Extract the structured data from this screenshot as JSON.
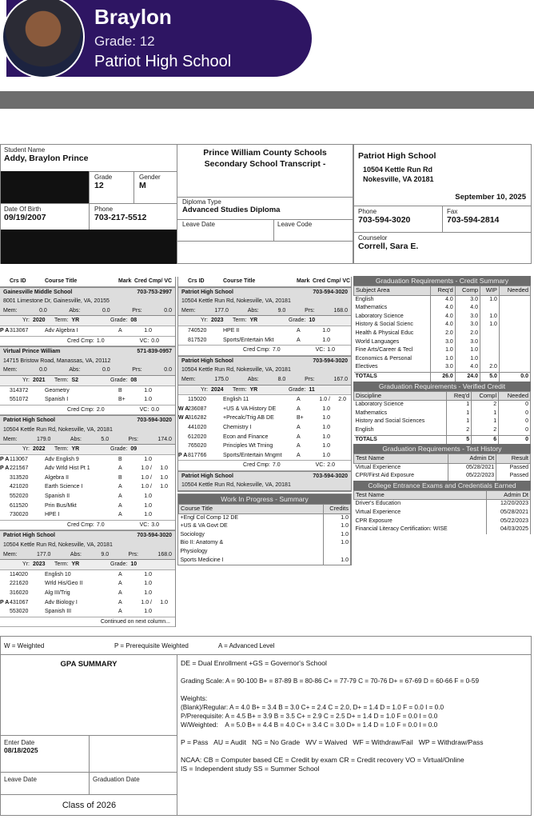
{
  "profile": {
    "name": "Braylon",
    "grade": "Grade: 12",
    "school": "Patriot High School"
  },
  "header": {
    "student_name_label": "Student Name",
    "student_name": "Addy, Braylon Prince",
    "grade_label": "Grade",
    "grade": "12",
    "gender_label": "Gender",
    "gender": "M",
    "dob_label": "Date Of Birth",
    "dob": "09/19/2007",
    "phone_label": "Phone",
    "phone": "703-217-5512",
    "district": "Prince William County Schools",
    "doc_title": "Secondary School Transcript -",
    "diploma_label": "Diploma Type",
    "diploma": "Advanced Studies Diploma",
    "leave_date_label": "Leave Date",
    "leave_code_label": "Leave Code",
    "school_name": "Patriot High School",
    "school_addr1": "10504 Kettle Run Rd",
    "school_addr2": "Nokesville, VA 20181",
    "date": "September 10, 2025",
    "school_phone_label": "Phone",
    "school_phone": "703-594-3020",
    "fax_label": "Fax",
    "fax": "703-594-2814",
    "counselor_label": "Counselor",
    "counselor": "Correll, Sara E."
  },
  "course_headers": {
    "id": "Crs ID",
    "title": "Course Title",
    "mark": "Mark",
    "cred": "Cred Cmp/ VC"
  },
  "labels": {
    "mem": "Mem:",
    "abs": "Abs:",
    "prs": "Prs:",
    "yr": "Yr:",
    "term": "Term:",
    "grade": "Grade:",
    "cred_cmp": "Cred Cmp:",
    "vc": "VC:"
  },
  "columns": [
    [
      {
        "school": {
          "name": "Gainesville Middle School",
          "phone": "703-753-2997",
          "address": "8001 Limestone Dr, Gainesville, VA, 20155",
          "mem": "0.0",
          "abs": "0.0",
          "prs": "0.0"
        }
      },
      {
        "term": {
          "yr": "2020",
          "term": "YR",
          "grade": "08",
          "courses": [
            {
              "flags": "P A",
              "id": "313067",
              "title": "Adv Algebra I",
              "mark": "A",
              "cred": "1.0",
              "vc": ""
            }
          ],
          "cred_cmp": "1.0",
          "vc": "0.0"
        }
      },
      {
        "school": {
          "name": "Virtual Prince William",
          "phone": "571-839-0957",
          "address": "14715 Bristow Road, Manassas, VA, 20112",
          "mem": "0.0",
          "abs": "0.0",
          "prs": "0.0"
        }
      },
      {
        "term": {
          "yr": "2021",
          "term": "S2",
          "grade": "08",
          "courses": [
            {
              "flags": "",
              "id": "314372",
              "title": "Geometry",
              "mark": "B",
              "cred": "1.0",
              "vc": ""
            },
            {
              "flags": "",
              "id": "551072",
              "title": "Spanish I",
              "mark": "B+",
              "cred": "1.0",
              "vc": ""
            }
          ],
          "cred_cmp": "2.0",
          "vc": "0.0"
        }
      },
      {
        "school": {
          "name": "Patriot High School",
          "phone": "703-594-3020",
          "address": "10504 Kettle Run Rd, Nokesville, VA, 20181",
          "mem": "179.0",
          "abs": "5.0",
          "prs": "174.0"
        }
      },
      {
        "term": {
          "yr": "2022",
          "term": "YR",
          "grade": "09",
          "courses": [
            {
              "flags": "P A",
              "id": "113067",
              "title": "Adv English 9",
              "mark": "B",
              "cred": "1.0",
              "vc": ""
            },
            {
              "flags": "P A",
              "id": "221567",
              "title": "Adv Wrld Hist Pt 1",
              "mark": "A",
              "cred": "1.0 /",
              "vc": "1.0"
            },
            {
              "flags": "",
              "id": "313520",
              "title": "Algebra II",
              "mark": "B",
              "cred": "1.0 /",
              "vc": "1.0"
            },
            {
              "flags": "",
              "id": "421020",
              "title": "Earth Science I",
              "mark": "A",
              "cred": "1.0 /",
              "vc": "1.0"
            },
            {
              "flags": "",
              "id": "552020",
              "title": "Spanish II",
              "mark": "A",
              "cred": "1.0",
              "vc": ""
            },
            {
              "flags": "",
              "id": "611520",
              "title": "Prin Bus/Mkt",
              "mark": "A",
              "cred": "1.0",
              "vc": ""
            },
            {
              "flags": "",
              "id": "730020",
              "title": "HPE I",
              "mark": "A",
              "cred": "1.0",
              "vc": ""
            }
          ],
          "cred_cmp": "7.0",
          "vc": "3.0"
        }
      },
      {
        "school": {
          "name": "Patriot High School",
          "phone": "703-594-3020",
          "address": "10504 Kettle Run Rd, Nokesville, VA, 20181",
          "mem": "177.0",
          "abs": "9.0",
          "prs": "168.0"
        }
      },
      {
        "term": {
          "yr": "2023",
          "term": "YR",
          "grade": "10",
          "courses": [
            {
              "flags": "",
              "id": "114020",
              "title": "English 10",
              "mark": "A",
              "cred": "1.0",
              "vc": ""
            },
            {
              "flags": "",
              "id": "221620",
              "title": "Wrld His/Geo II",
              "mark": "A",
              "cred": "1.0",
              "vc": ""
            },
            {
              "flags": "",
              "id": "316020",
              "title": "Alg III/Trig",
              "mark": "A",
              "cred": "1.0",
              "vc": ""
            },
            {
              "flags": "P A",
              "id": "431067",
              "title": "Adv Biology I",
              "mark": "A",
              "cred": "1.0 /",
              "vc": "1.0"
            },
            {
              "flags": "",
              "id": "553020",
              "title": "Spanish III",
              "mark": "A",
              "cred": "1.0",
              "vc": ""
            }
          ]
        }
      },
      {
        "note": "Continued on next column..."
      }
    ],
    [
      {
        "school": {
          "name": "Patriot High School",
          "phone": "703-594-3020",
          "address": "10504 Kettle Run Rd, Nokesville, VA, 20181",
          "mem": "177.0",
          "abs": "9.0",
          "prs": "168.0"
        }
      },
      {
        "term": {
          "yr": "2023",
          "term": "YR",
          "grade": "10",
          "courses": [
            {
              "flags": "",
              "id": "740520",
              "title": "HPE II",
              "mark": "A",
              "cred": "1.0",
              "vc": ""
            },
            {
              "flags": "",
              "id": "817520",
              "title": "Sports/Entertain Mkt",
              "mark": "A",
              "cred": "1.0",
              "vc": ""
            }
          ],
          "cred_cmp": "7.0",
          "vc": "1.0"
        }
      },
      {
        "school": {
          "name": "Patriot High School",
          "phone": "703-594-3020",
          "address": "10504 Kettle Run Rd, Nokesville, VA, 20181",
          "mem": "175.0",
          "abs": "8.0",
          "prs": "167.0"
        }
      },
      {
        "term": {
          "yr": "2024",
          "term": "YR",
          "grade": "11",
          "courses": [
            {
              "flags": "",
              "id": "115020",
              "title": "English 11",
              "mark": "A",
              "cred": "1.0 /",
              "vc": "2.0"
            },
            {
              "flags": "W A",
              "id": "236087",
              "title": "+US & VA History DE",
              "mark": "A",
              "cred": "1.0",
              "vc": ""
            },
            {
              "flags": "W A",
              "id": "316282",
              "title": "+Precalc/Trig AB DE",
              "mark": "B+",
              "cred": "1.0",
              "vc": ""
            },
            {
              "flags": "",
              "id": "441020",
              "title": "Chemistry I",
              "mark": "A",
              "cred": "1.0",
              "vc": ""
            },
            {
              "flags": "",
              "id": "612020",
              "title": "Econ and Finance",
              "mark": "A",
              "cred": "1.0",
              "vc": ""
            },
            {
              "flags": "",
              "id": "765020",
              "title": "Principles Wt Trning",
              "mark": "A",
              "cred": "1.0",
              "vc": ""
            },
            {
              "flags": "P A",
              "id": "817766",
              "title": "Sports/Entertain Mngmt",
              "mark": "A",
              "cred": "1.0",
              "vc": ""
            }
          ],
          "cred_cmp": "7.0",
          "vc": "2.0"
        }
      },
      {
        "school": {
          "name": "Patriot High School",
          "phone": "703-594-3020",
          "address": "10504 Kettle Run Rd, Nokesville, VA, 20181"
        }
      }
    ]
  ],
  "wip": {
    "title": "Work In Progress - Summary",
    "h_title": "Course Title",
    "h_credits": "Credits",
    "rows": [
      {
        "title": "+Engl Col Comp 12 DE",
        "credits": "1.0"
      },
      {
        "title": "+US & VA Govt DE",
        "credits": "1.0"
      },
      {
        "title": "Sociology",
        "credits": "1.0"
      },
      {
        "title": "Bio II: Anatomy &",
        "credits": "1.0"
      },
      {
        "title": "Physiology",
        "credits": ""
      },
      {
        "title": "Sports Medicine I",
        "credits": "1.0"
      }
    ]
  },
  "credit_summary": {
    "title": "Graduation Requirements  -  Credit Summary",
    "headers": [
      "Subject Area",
      "Req'd",
      "Comp",
      "WIP",
      "Needed"
    ],
    "rows": [
      [
        "English",
        "4.0",
        "3.0",
        "1.0",
        ""
      ],
      [
        "Mathematics",
        "4.0",
        "4.0",
        "",
        ""
      ],
      [
        "Laboratory Science",
        "4.0",
        "3.0",
        "1.0",
        ""
      ],
      [
        "History & Social Scienc",
        "4.0",
        "3.0",
        "1.0",
        ""
      ],
      [
        "Health & Physical Educ",
        "2.0",
        "2.0",
        "",
        ""
      ],
      [
        "World Languages",
        "3.0",
        "3.0",
        "",
        ""
      ],
      [
        "Fine Arts/Career & Tecl",
        "1.0",
        "1.0",
        "",
        ""
      ],
      [
        "Economics & Personal",
        "1.0",
        "1.0",
        "",
        ""
      ],
      [
        "Electives",
        "3.0",
        "4.0",
        "2.0",
        ""
      ]
    ],
    "totals": [
      "TOTALS",
      "26.0",
      "24.0",
      "5.0",
      "0.0"
    ]
  },
  "verified_credit": {
    "title": "Graduation Requirements  -  Verified Credit",
    "headers": [
      "Discipline",
      "Req'd",
      "Compl",
      "Needed"
    ],
    "rows": [
      [
        "Laboratory Science",
        "1",
        "2",
        "0"
      ],
      [
        "Mathematics",
        "1",
        "1",
        "0"
      ],
      [
        "History and Social Sciences",
        "1",
        "1",
        "0"
      ],
      [
        "English",
        "2",
        "2",
        "0"
      ]
    ],
    "totals": [
      "TOTALS",
      "5",
      "6",
      "0"
    ]
  },
  "test_history": {
    "title": "Graduation Requirements - Test History",
    "headers": [
      "Test Name",
      "Admin Dt",
      "Result"
    ],
    "rows": [
      [
        "Virtual Experience",
        "05/28/2021",
        "Passed"
      ],
      [
        "CPR/First Aid Exposure",
        "05/22/2023",
        "Passed"
      ]
    ]
  },
  "credentials": {
    "title": "College Entrance Exams and Credentials Earned",
    "headers": [
      "Test Name",
      "Admin Dt"
    ],
    "rows": [
      [
        "Driver's Education",
        "12/20/2023"
      ],
      [
        "Virtual Experience",
        "05/28/2021"
      ],
      [
        "CPR Exposure",
        "05/22/2023"
      ],
      [
        "Financial Literacy Certification: WISE",
        "04/03/2025"
      ]
    ]
  },
  "legend": {
    "w": "W = Weighted",
    "p": "P = Prerequisite Weighted",
    "a": "A = Advanced Level"
  },
  "gpa": {
    "title": "GPA SUMMARY",
    "enter_date_label": "Enter Date",
    "enter_date": "08/18/2025",
    "leave_date_label": "Leave Date",
    "grad_date_label": "Graduation Date",
    "class_of": "Class of 2026"
  },
  "key": {
    "de": "DE = Dual Enrollment +GS = Governor's School",
    "scale": "Grading Scale: A = 90-100  B+ = 87-89 B = 80-86 C+ = 77-79 C = 70-76  D+ = 67-69 D = 60-66  F = 0-59",
    "weights": "Weights:",
    "regular": "(Blank)/Regular:  A = 4.0 B+ = 3.4 B = 3.0 C+ = 2.4 C = 2.0, D+ = 1.4 D = 1.0 F = 0.0 I = 0.0",
    "prereq": "P/Prerequisite: A = 4.5 B+ = 3.9 B = 3.5 C+ = 2.9 C = 2.5 D+ = 1.4 D = 1.0 F = 0.0 I = 0.0",
    "weighted": "W/Weighted:    A = 5.0 B+ = 4.4 B = 4.0 C+ = 3.4 C = 3.0 D+ = 1.4 D = 1.0 F = 0.0 I = 0.0",
    "marks": "P = Pass   AU = Audit   NG = No Grade   WV = Waived   WF = Withdraw/Fail   WP = Withdraw/Pass",
    "ncaa": "NCAA: CB = Computer based CE = Credit by exam CR = Credit recovery VO = Virtual/Online",
    "is": "IS = Independent study SS = Summer School"
  }
}
